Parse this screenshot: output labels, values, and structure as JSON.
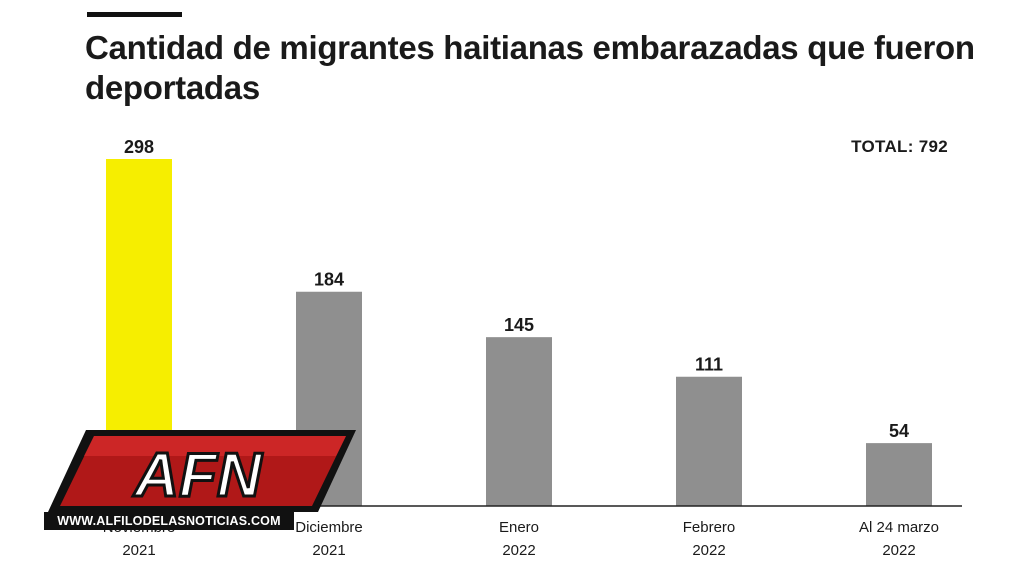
{
  "title": "Cantidad de migrantes haitianas embarazadas que fueron deportadas",
  "total_label": "TOTAL: 792",
  "colors": {
    "highlight": "#f6ee00",
    "bar": "#8f8f8f",
    "text": "#1a1a1a"
  },
  "chart_data": {
    "type": "bar",
    "categories": [
      [
        "Noviembre",
        "2021"
      ],
      [
        "Diciembre",
        "2021"
      ],
      [
        "Enero",
        "2022"
      ],
      [
        "Febrero",
        "2022"
      ],
      [
        "Al 24 marzo",
        "2022"
      ]
    ],
    "values": [
      298,
      184,
      145,
      111,
      54
    ],
    "highlight_index": 0,
    "title": "Cantidad de migrantes haitianas embarazadas que fueron deportadas",
    "xlabel": "",
    "ylabel": "",
    "ylim": [
      0,
      298
    ],
    "grid": false,
    "legend": "none"
  },
  "watermark": {
    "logo_text": "AFN",
    "url": "WWW.ALFILODELASNOTICIAS.COM"
  }
}
